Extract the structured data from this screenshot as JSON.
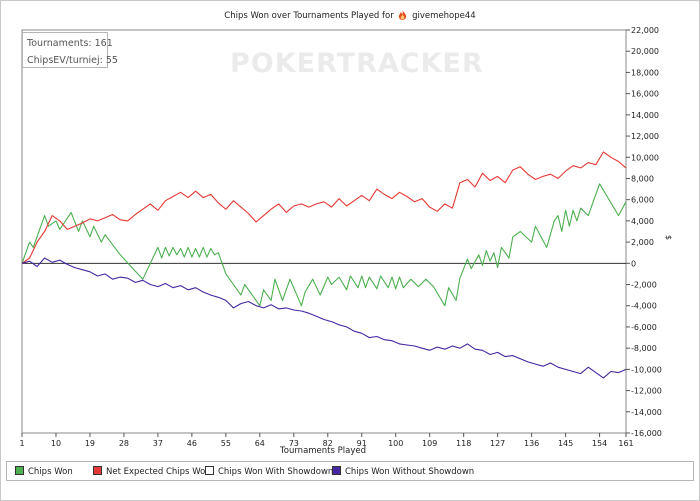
{
  "title": {
    "prefix": "Chips Won over Tournaments Played for",
    "player": "givemehope44"
  },
  "stats": {
    "tournaments": "Tournaments: 161",
    "chipsev": "ChipsEV/turniej: 55"
  },
  "watermark": "POKERTRACKER",
  "legend": {
    "items": [
      {
        "label": "Chips Won",
        "color": "#4caf50"
      },
      {
        "label": "Net Expected Chips Won",
        "color": "#e53935"
      },
      {
        "label": "Chips Won With Showdown",
        "color": "#ffffff"
      },
      {
        "label": "Chips Won Without Showdown",
        "color": "#4527a0"
      }
    ]
  },
  "chart_data": {
    "type": "line",
    "xlabel": "Tournaments Played",
    "ylabel": "$",
    "xlim": [
      1,
      161
    ],
    "ylim": [
      -16000,
      22000
    ],
    "xticks": [
      1,
      10,
      19,
      28,
      37,
      46,
      55,
      64,
      73,
      82,
      91,
      100,
      109,
      118,
      127,
      136,
      145,
      154,
      161
    ],
    "yticks": [
      -16000,
      -14000,
      -12000,
      -10000,
      -8000,
      -6000,
      -4000,
      -2000,
      0,
      2000,
      4000,
      6000,
      8000,
      10000,
      12000,
      14000,
      16000,
      18000,
      20000,
      22000
    ],
    "ytick_labels": [
      "-16,000",
      "-14,000",
      "-12,000",
      "-10,000",
      "-8,000",
      "-6,000",
      "-4,000",
      "-2,000",
      "0",
      "2,000",
      "4,000",
      "6,000",
      "8,000",
      "10,000",
      "12,000",
      "14,000",
      "16,000",
      "18,000",
      "20,000",
      "22,000"
    ],
    "zero_line": true,
    "grid": false,
    "series": [
      {
        "name": "Chips Won",
        "color": "#4caf50",
        "x": [
          1,
          3,
          4,
          7,
          8,
          10,
          11,
          14,
          16,
          17,
          19,
          20,
          22,
          23,
          27,
          33,
          37,
          38,
          39,
          40,
          41,
          42,
          43,
          44,
          45,
          46,
          47,
          48,
          49,
          50,
          51,
          52,
          53,
          55,
          59,
          60,
          64,
          65,
          67,
          68,
          70,
          72,
          75,
          76,
          78,
          80,
          82,
          83,
          85,
          87,
          88,
          90,
          91,
          92,
          93,
          95,
          96,
          98,
          99,
          100,
          101,
          102,
          104,
          106,
          108,
          110,
          113,
          114,
          116,
          117,
          119,
          120,
          122,
          123,
          124,
          125,
          126,
          127,
          128,
          130,
          131,
          133,
          136,
          137,
          140,
          142,
          143,
          144,
          145,
          146,
          147,
          148,
          149,
          151,
          153,
          154,
          159,
          161
        ],
        "y": [
          0,
          2000,
          1500,
          4500,
          3500,
          4000,
          3200,
          4800,
          3000,
          4000,
          2500,
          3500,
          2000,
          2700,
          800,
          -1500,
          1500,
          500,
          1500,
          700,
          1500,
          800,
          1400,
          600,
          1500,
          600,
          1400,
          600,
          1500,
          600,
          1400,
          800,
          1000,
          -1000,
          -3000,
          -2000,
          -4000,
          -2500,
          -3500,
          -1500,
          -3500,
          -1500,
          -4000,
          -2700,
          -1500,
          -3000,
          -1300,
          -2000,
          -1300,
          -2500,
          -1200,
          -2300,
          -1200,
          -2300,
          -1300,
          -2400,
          -1200,
          -2300,
          -1300,
          -2400,
          -1300,
          -2300,
          -1500,
          -2200,
          -1500,
          -2200,
          -4000,
          -2300,
          -3500,
          -1400,
          400,
          -500,
          800,
          -200,
          1200,
          200,
          1000,
          -400,
          1500,
          500,
          2500,
          3000,
          2000,
          3500,
          1500,
          4000,
          4500,
          3000,
          5000,
          3500,
          5000,
          4000,
          5200,
          4500,
          6500,
          7500,
          4500,
          5800
        ]
      },
      {
        "name": "Net Expected Chips Won",
        "color": "#e53935",
        "x": [
          1,
          3,
          5,
          7,
          9,
          11,
          13,
          15,
          17,
          19,
          21,
          23,
          25,
          27,
          29,
          31,
          33,
          35,
          37,
          39,
          41,
          43,
          45,
          47,
          49,
          51,
          53,
          55,
          57,
          59,
          61,
          63,
          65,
          67,
          69,
          71,
          73,
          75,
          77,
          79,
          81,
          83,
          85,
          87,
          89,
          91,
          93,
          95,
          97,
          99,
          101,
          103,
          105,
          107,
          109,
          111,
          113,
          115,
          117,
          119,
          121,
          123,
          125,
          127,
          129,
          131,
          133,
          135,
          137,
          139,
          141,
          143,
          145,
          147,
          149,
          151,
          153,
          155,
          157,
          159,
          161
        ],
        "y": [
          0,
          500,
          2000,
          3000,
          4500,
          4000,
          3200,
          3500,
          3800,
          4200,
          4000,
          4300,
          4600,
          4100,
          4000,
          4600,
          5100,
          5600,
          5000,
          5900,
          6300,
          6700,
          6200,
          6800,
          6200,
          6500,
          5700,
          5100,
          5900,
          5300,
          4700,
          3900,
          4500,
          5100,
          5600,
          4800,
          5400,
          5600,
          5300,
          5600,
          5800,
          5300,
          6100,
          5400,
          5900,
          6400,
          5900,
          7000,
          6500,
          6100,
          6700,
          6300,
          5800,
          6100,
          5300,
          4900,
          5600,
          5200,
          7600,
          7900,
          7200,
          8500,
          7800,
          8200,
          7600,
          8800,
          9100,
          8400,
          7900,
          8200,
          8400,
          8000,
          8700,
          9200,
          9000,
          9500,
          9300,
          10500,
          10000,
          9600,
          9000
        ]
      },
      {
        "name": "Chips Won Without Showdown",
        "color": "#4527a0",
        "x": [
          1,
          3,
          5,
          7,
          9,
          11,
          13,
          15,
          17,
          19,
          21,
          23,
          25,
          27,
          29,
          31,
          33,
          35,
          37,
          39,
          41,
          43,
          45,
          47,
          49,
          51,
          53,
          55,
          57,
          59,
          61,
          63,
          65,
          67,
          69,
          71,
          73,
          75,
          77,
          79,
          81,
          83,
          85,
          87,
          89,
          91,
          93,
          95,
          97,
          99,
          101,
          103,
          105,
          107,
          109,
          111,
          113,
          115,
          117,
          119,
          121,
          123,
          125,
          127,
          129,
          131,
          133,
          135,
          137,
          139,
          141,
          143,
          145,
          147,
          149,
          151,
          153,
          155,
          157,
          159,
          161
        ],
        "y": [
          0,
          200,
          -300,
          500,
          100,
          300,
          -100,
          -400,
          -600,
          -800,
          -1200,
          -1000,
          -1500,
          -1300,
          -1400,
          -1800,
          -1600,
          -2000,
          -2200,
          -1900,
          -2300,
          -2100,
          -2500,
          -2300,
          -2700,
          -3000,
          -3200,
          -3500,
          -4200,
          -3800,
          -3600,
          -4000,
          -4200,
          -3900,
          -4300,
          -4200,
          -4400,
          -4500,
          -4700,
          -5000,
          -5300,
          -5500,
          -5800,
          -6000,
          -6400,
          -6600,
          -7000,
          -6900,
          -7200,
          -7300,
          -7600,
          -7700,
          -7800,
          -8000,
          -8200,
          -7900,
          -8100,
          -7800,
          -8000,
          -7600,
          -8100,
          -8200,
          -8600,
          -8400,
          -8800,
          -8700,
          -9000,
          -9300,
          -9500,
          -9700,
          -9400,
          -9800,
          -10000,
          -10200,
          -10400,
          -9800,
          -10300,
          -10800,
          -10200,
          -10300,
          -10000
        ]
      }
    ]
  }
}
